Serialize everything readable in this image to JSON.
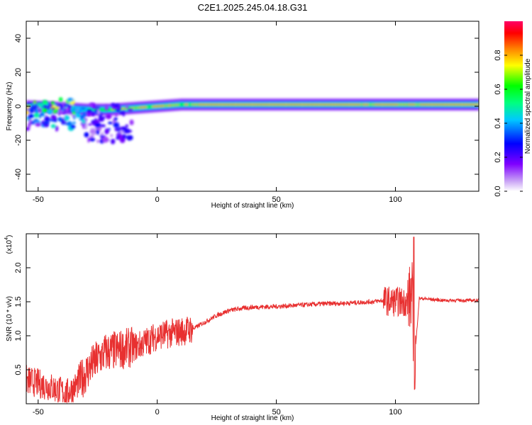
{
  "title": "C2E1.2025.245.04.18.G31",
  "chart_data": [
    {
      "type": "heatmap",
      "xlabel": "Height of straight line (km)",
      "ylabel": "Frequency (Hz)",
      "xlim": [
        -55,
        135
      ],
      "ylim": [
        -50,
        50
      ],
      "xticks": [
        -50,
        0,
        50,
        100
      ],
      "yticks": [
        40,
        20,
        0,
        -20,
        -40
      ],
      "colorbar": {
        "label": "Normalized spectral amplitude",
        "range": [
          0.0,
          1.0
        ],
        "ticks": [
          "0.0",
          "0.2",
          "0.4",
          "0.6",
          "0.8"
        ],
        "colors": [
          "#ffffff",
          "#c9a3f5",
          "#7f00ff",
          "#0000ff",
          "#00c8ff",
          "#00ff7f",
          "#00ff00",
          "#ffff00",
          "#ff7f00",
          "#ff0000",
          "#ff0066"
        ]
      },
      "ridge": {
        "description": "Main energy ridge near 0-1 Hz across heights",
        "x": [
          -55,
          -40,
          -30,
          -20,
          -10,
          0,
          10,
          20,
          30,
          40,
          50,
          60,
          70,
          80,
          90,
          100,
          110,
          120,
          135
        ],
        "frequency": [
          0,
          -1,
          -2,
          -2,
          -1,
          0,
          1,
          1,
          1,
          1,
          1,
          1,
          1,
          1,
          1,
          1,
          1,
          1,
          1
        ],
        "amplitude": [
          0.3,
          0.2,
          0.6,
          0.7,
          0.8,
          0.9,
          0.75,
          0.9,
          0.95,
          0.95,
          0.95,
          0.95,
          0.95,
          0.9,
          0.85,
          0.9,
          0.9,
          0.95,
          0.95
        ]
      }
    },
    {
      "type": "line",
      "xlabel": "Height of straight line (km)",
      "ylabel": "SNR (10 * v/v)",
      "yscale_label": "(x10",
      "yscale_exp": "4",
      "xlim": [
        -55,
        135
      ],
      "ylim": [
        0,
        2.5
      ],
      "xticks": [
        -50,
        0,
        50,
        100
      ],
      "yticks": [
        "0.5",
        "1.0",
        "1.5",
        "2.0"
      ],
      "color": "#e83030",
      "series": [
        {
          "name": "SNR",
          "x": [
            -55,
            -45,
            -38,
            -33,
            -28,
            -22,
            -15,
            -8,
            0,
            8,
            15,
            20,
            25,
            30,
            35,
            40,
            50,
            60,
            70,
            80,
            90,
            95,
            100,
            105,
            107,
            108,
            110,
            120,
            135
          ],
          "y": [
            0.35,
            0.25,
            0.15,
            0.3,
            0.55,
            0.75,
            0.8,
            0.85,
            1.0,
            1.05,
            1.1,
            1.2,
            1.3,
            1.37,
            1.4,
            1.42,
            1.43,
            1.45,
            1.47,
            1.48,
            1.5,
            1.52,
            1.5,
            1.5,
            1.6,
            0.6,
            1.55,
            1.52,
            1.52
          ]
        }
      ]
    }
  ]
}
